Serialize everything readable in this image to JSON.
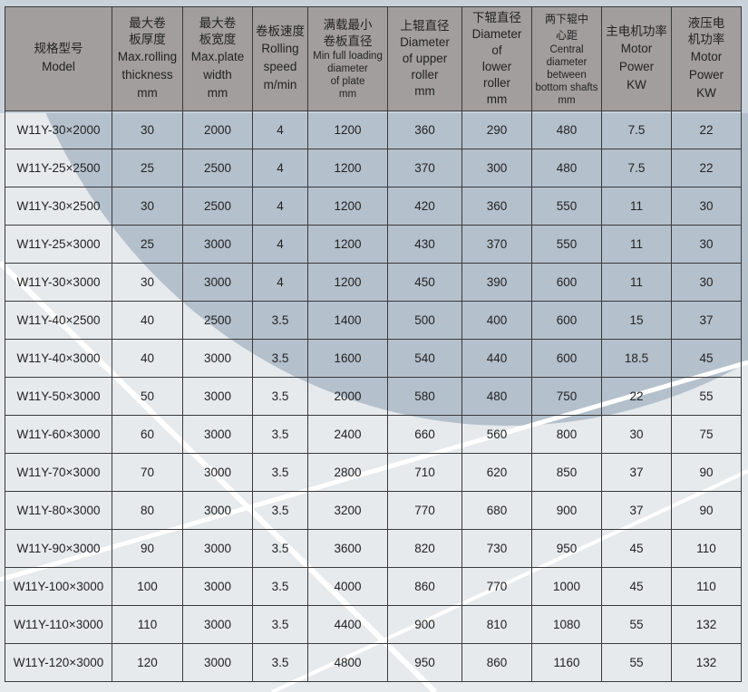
{
  "table": {
    "headers": [
      {
        "zh": "规格型号",
        "en": [
          "Model"
        ]
      },
      {
        "zh": "最大卷板厚度",
        "en": [
          "Max.rolling",
          "thickness",
          "mm"
        ]
      },
      {
        "zh": "最大卷板宽度",
        "en": [
          "Max.plate",
          "width",
          "mm"
        ]
      },
      {
        "zh": "卷板速度",
        "en": [
          "Rolling",
          "speed",
          "m/min"
        ]
      },
      {
        "zh": "满载最小卷板直径",
        "en": [
          "Min full loading",
          "diameter",
          "of plate",
          "mm"
        ]
      },
      {
        "zh": "上辊直径",
        "en": [
          "Diameter",
          "of upper",
          "roller",
          "mm"
        ]
      },
      {
        "zh": "下辊直径",
        "en": [
          "Diameter",
          "of",
          "lower",
          "roller",
          "mm"
        ]
      },
      {
        "zh": "两下辊中心距",
        "en": [
          "Central",
          "diameter",
          "between",
          "bottom shafts",
          "mm"
        ]
      },
      {
        "zh": "主电机功率",
        "en": [
          "Motor",
          "Power",
          "KW"
        ]
      },
      {
        "zh": "液压电机功率",
        "en": [
          "Motor",
          "Power",
          "KW"
        ]
      }
    ],
    "rows": [
      [
        "W11Y-30×2000",
        "30",
        "2000",
        "4",
        "1200",
        "360",
        "290",
        "480",
        "7.5",
        "22"
      ],
      [
        "W11Y-25×2500",
        "25",
        "2500",
        "4",
        "1200",
        "370",
        "300",
        "480",
        "7.5",
        "22"
      ],
      [
        "W11Y-30×2500",
        "30",
        "2500",
        "4",
        "1200",
        "420",
        "360",
        "550",
        "11",
        "30"
      ],
      [
        "W11Y-25×3000",
        "25",
        "3000",
        "4",
        "1200",
        "430",
        "370",
        "550",
        "11",
        "30"
      ],
      [
        "W11Y-30×3000",
        "30",
        "3000",
        "4",
        "1200",
        "450",
        "390",
        "600",
        "11",
        "30"
      ],
      [
        "W11Y-40×2500",
        "40",
        "2500",
        "3.5",
        "1400",
        "500",
        "400",
        "600",
        "15",
        "37"
      ],
      [
        "W11Y-40×3000",
        "40",
        "3000",
        "3.5",
        "1600",
        "540",
        "440",
        "600",
        "18.5",
        "45"
      ],
      [
        "W11Y-50×3000",
        "50",
        "3000",
        "3.5",
        "2000",
        "580",
        "480",
        "750",
        "22",
        "55"
      ],
      [
        "W11Y-60×3000",
        "60",
        "3000",
        "3.5",
        "2400",
        "660",
        "560",
        "800",
        "30",
        "75"
      ],
      [
        "W11Y-70×3000",
        "70",
        "3000",
        "3.5",
        "2800",
        "710",
        "620",
        "850",
        "37",
        "90"
      ],
      [
        "W11Y-80×3000",
        "80",
        "3000",
        "3.5",
        "3200",
        "770",
        "680",
        "900",
        "37",
        "90"
      ],
      [
        "W11Y-90×3000",
        "90",
        "3000",
        "3.5",
        "3600",
        "820",
        "730",
        "950",
        "45",
        "110"
      ],
      [
        "W11Y-100×3000",
        "100",
        "3000",
        "3.5",
        "4000",
        "860",
        "770",
        "1000",
        "45",
        "110"
      ],
      [
        "W11Y-110×3000",
        "110",
        "3000",
        "3.5",
        "4400",
        "900",
        "810",
        "1080",
        "55",
        "132"
      ],
      [
        "W11Y-120×3000",
        "120",
        "3000",
        "3.5",
        "4800",
        "950",
        "860",
        "1160",
        "55",
        "132"
      ]
    ]
  }
}
